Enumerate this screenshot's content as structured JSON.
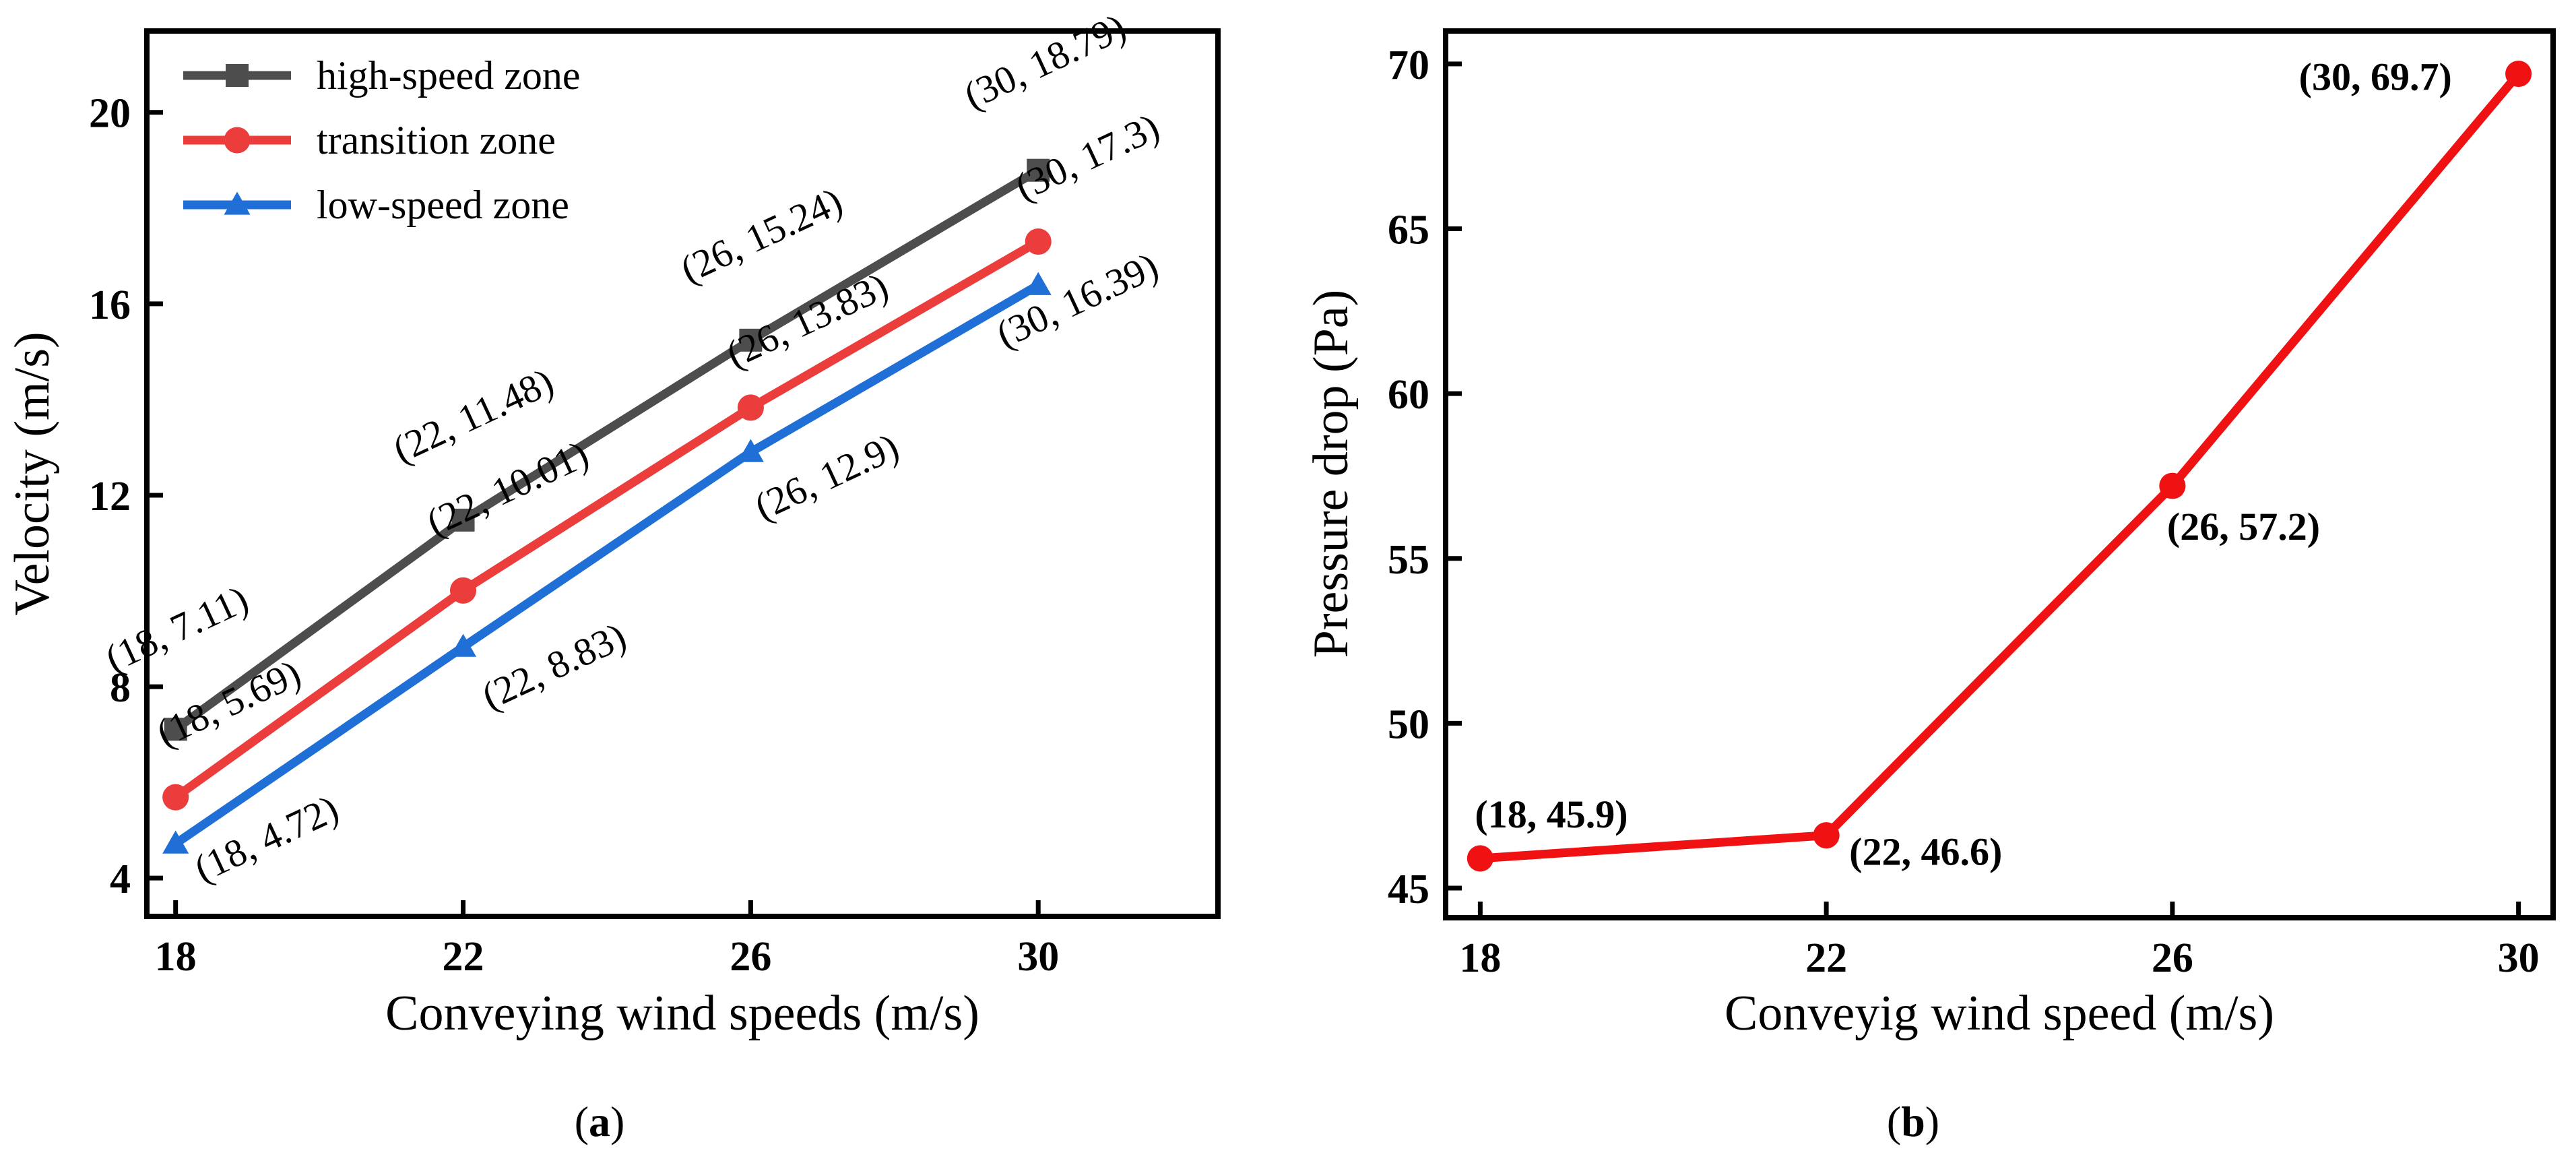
{
  "chart_data": [
    {
      "type": "line",
      "panel_label": "a",
      "xlabel": "Conveying wind speeds (m/s)",
      "ylabel": "Velocity (m/s)",
      "x": [
        18,
        22,
        26,
        30
      ],
      "x_ticks": [
        18,
        22,
        26,
        30
      ],
      "y_ticks": [
        4,
        8,
        12,
        16,
        20
      ],
      "xlim": [
        17.6,
        32.5
      ],
      "ylim": [
        3.2,
        21.7
      ],
      "grid": false,
      "legend_position": "top-left",
      "series": [
        {
          "name": "high-speed zone",
          "marker": "square",
          "color": "#4d4d4d",
          "values": [
            7.11,
            11.48,
            15.24,
            18.79
          ],
          "labels": [
            "(18, 7.11)",
            "(22, 11.48)",
            "(26, 15.24)",
            "(30, 18.79)"
          ]
        },
        {
          "name": "transition zone",
          "marker": "circle",
          "color": "#ec3d3d",
          "values": [
            5.69,
            10.01,
            13.83,
            17.3
          ],
          "labels": [
            "(18, 5.69)",
            "(22, 10.01)",
            "(26, 13.83)",
            "(30, 17.3)"
          ]
        },
        {
          "name": "low-speed zone",
          "marker": "triangle",
          "color": "#1f6fd6",
          "values": [
            4.72,
            8.83,
            12.9,
            16.39
          ],
          "labels": [
            "(18, 4.72)",
            "(22, 8.83)",
            "(26, 12.9)",
            "(30, 16.39)"
          ]
        }
      ]
    },
    {
      "type": "line",
      "panel_label": "b",
      "xlabel": "Conveyig wind speed (m/s)",
      "ylabel": "Pressure drop (Pa)",
      "x": [
        18,
        22,
        26,
        30
      ],
      "x_ticks": [
        18,
        22,
        26,
        30
      ],
      "y_ticks": [
        45,
        50,
        55,
        60,
        65,
        70
      ],
      "xlim": [
        17.6,
        30.4
      ],
      "ylim": [
        44.1,
        71.0
      ],
      "grid": false,
      "series": [
        {
          "marker": "circle",
          "color": "#f01212",
          "values": [
            45.9,
            46.6,
            57.2,
            69.7
          ],
          "labels": [
            "(18, 45.9)",
            "(22, 46.6)",
            "(26, 57.2)",
            "(30, 69.7)"
          ]
        }
      ]
    }
  ]
}
